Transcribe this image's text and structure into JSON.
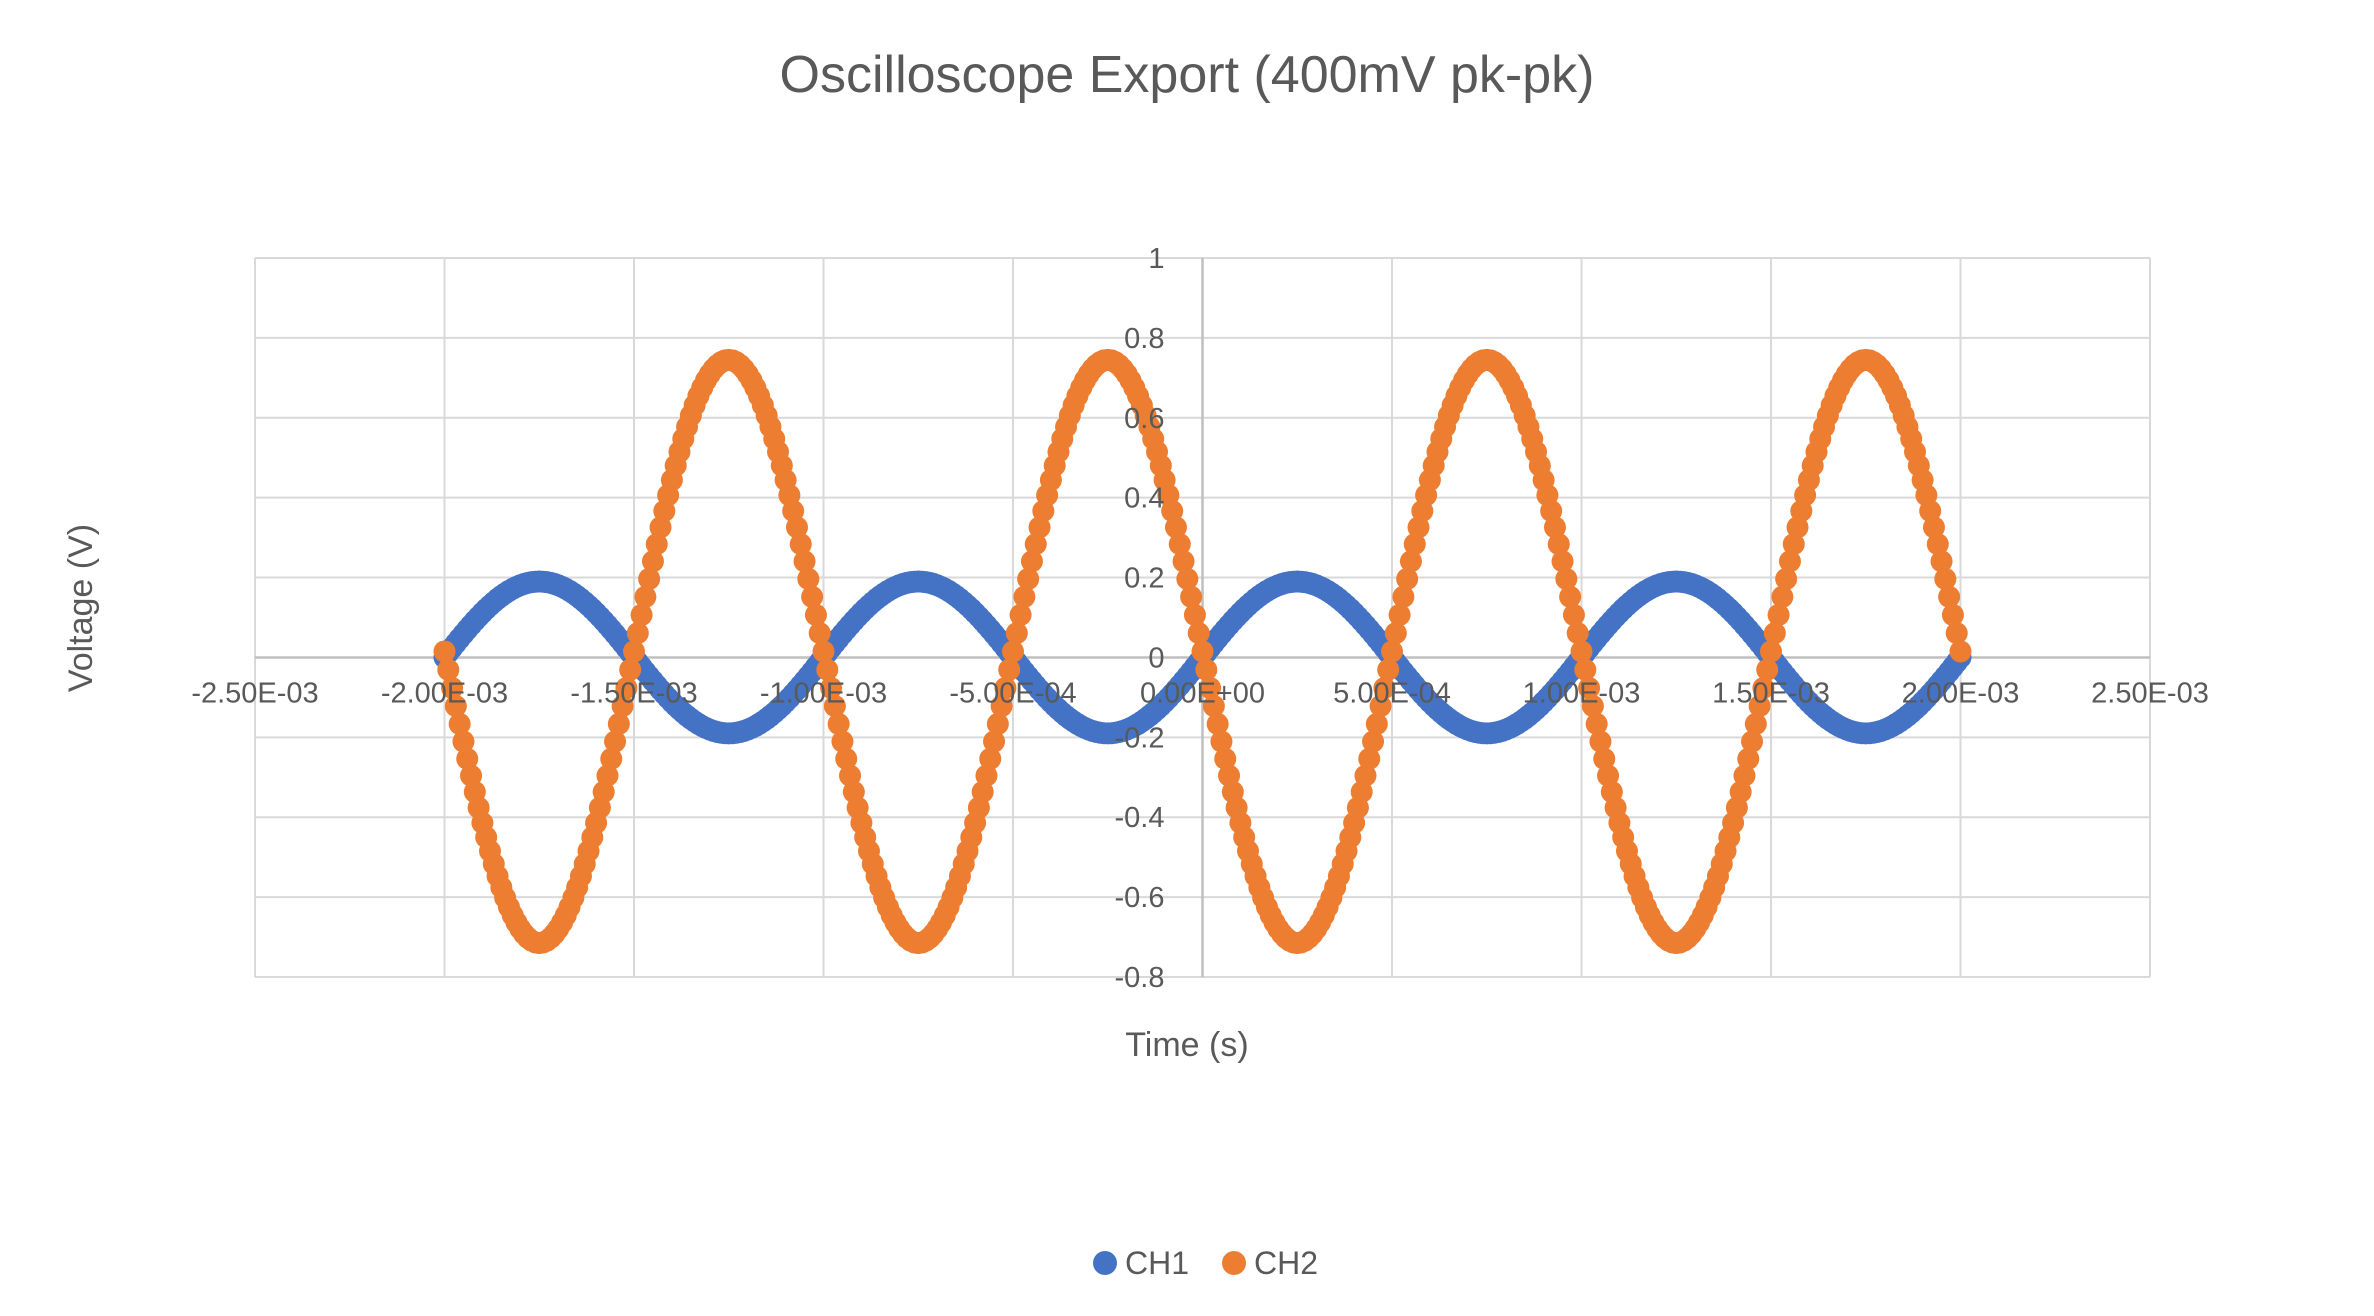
{
  "chart_data": {
    "type": "scatter",
    "title": "Oscilloscope Export (400mV pk-pk)",
    "xlabel": "Time (s)",
    "ylabel": "Voltage (V)",
    "xlim": [
      -0.0025,
      0.0025
    ],
    "ylim": [
      -0.8,
      1.0
    ],
    "x_ticks": [
      -0.0025,
      -0.002,
      -0.0015,
      -0.001,
      -0.0005,
      0,
      0.0005,
      0.001,
      0.0015,
      0.002,
      0.0025
    ],
    "x_tick_labels": [
      "-2.50E-03",
      "-2.00E-03",
      "-1.50E-03",
      "-1.00E-03",
      "-5.00E-04",
      "0.00E+00",
      "5.00E-04",
      "1.00E-03",
      "1.50E-03",
      "2.00E-03",
      "2.50E-03"
    ],
    "y_ticks": [
      1,
      0.8,
      0.6,
      0.4,
      0.2,
      0,
      -0.2,
      -0.4,
      -0.6,
      -0.8
    ],
    "y_tick_labels": [
      "1",
      "0.8",
      "0.6",
      "0.4",
      "0.2",
      "0",
      "-0.2",
      "-0.4",
      "-0.6",
      "-0.8"
    ],
    "grid": true,
    "legend_position": "bottom",
    "series": [
      {
        "name": "CH1",
        "color": "#4472C4",
        "x": [
          -0.002,
          -0.00175,
          -0.0015,
          -0.00125,
          -0.001,
          -0.00075,
          -0.0005,
          -0.00025,
          0,
          0.00025,
          0.0005,
          0.00075,
          0.001,
          0.00125,
          0.0015,
          0.00175,
          0.002
        ],
        "y": [
          0.0,
          0.19,
          0.0,
          -0.19,
          0.0,
          0.19,
          0.0,
          -0.19,
          0.0,
          0.19,
          0.0,
          -0.19,
          0.0,
          0.19,
          0.0,
          -0.19,
          0.0
        ],
        "waveform": {
          "shape": "sine",
          "amplitude": 0.19,
          "offset": 0.0,
          "period": 0.001,
          "phase_deg": 0,
          "x_start": -0.002,
          "x_end": 0.002,
          "samples": 400
        }
      },
      {
        "name": "CH2",
        "color": "#ED7D31",
        "x": [
          -0.002,
          -0.00175,
          -0.0015,
          -0.00125,
          -0.001,
          -0.00075,
          -0.0005,
          -0.00025,
          0,
          0.00025,
          0.0005,
          0.00075,
          0.001,
          0.00125,
          0.0015,
          0.00175,
          0.002
        ],
        "y": [
          0.0,
          -0.72,
          0.0,
          0.75,
          0.0,
          -0.72,
          0.0,
          0.75,
          0.0,
          -0.72,
          0.0,
          0.75,
          0.0,
          -0.72,
          0.0,
          0.75,
          0.0
        ],
        "waveform": {
          "shape": "sine",
          "amplitude": 0.73,
          "offset": 0.015,
          "period": 0.001,
          "phase_deg": 180,
          "x_start": -0.002,
          "x_end": 0.002,
          "samples": 400
        }
      }
    ]
  }
}
